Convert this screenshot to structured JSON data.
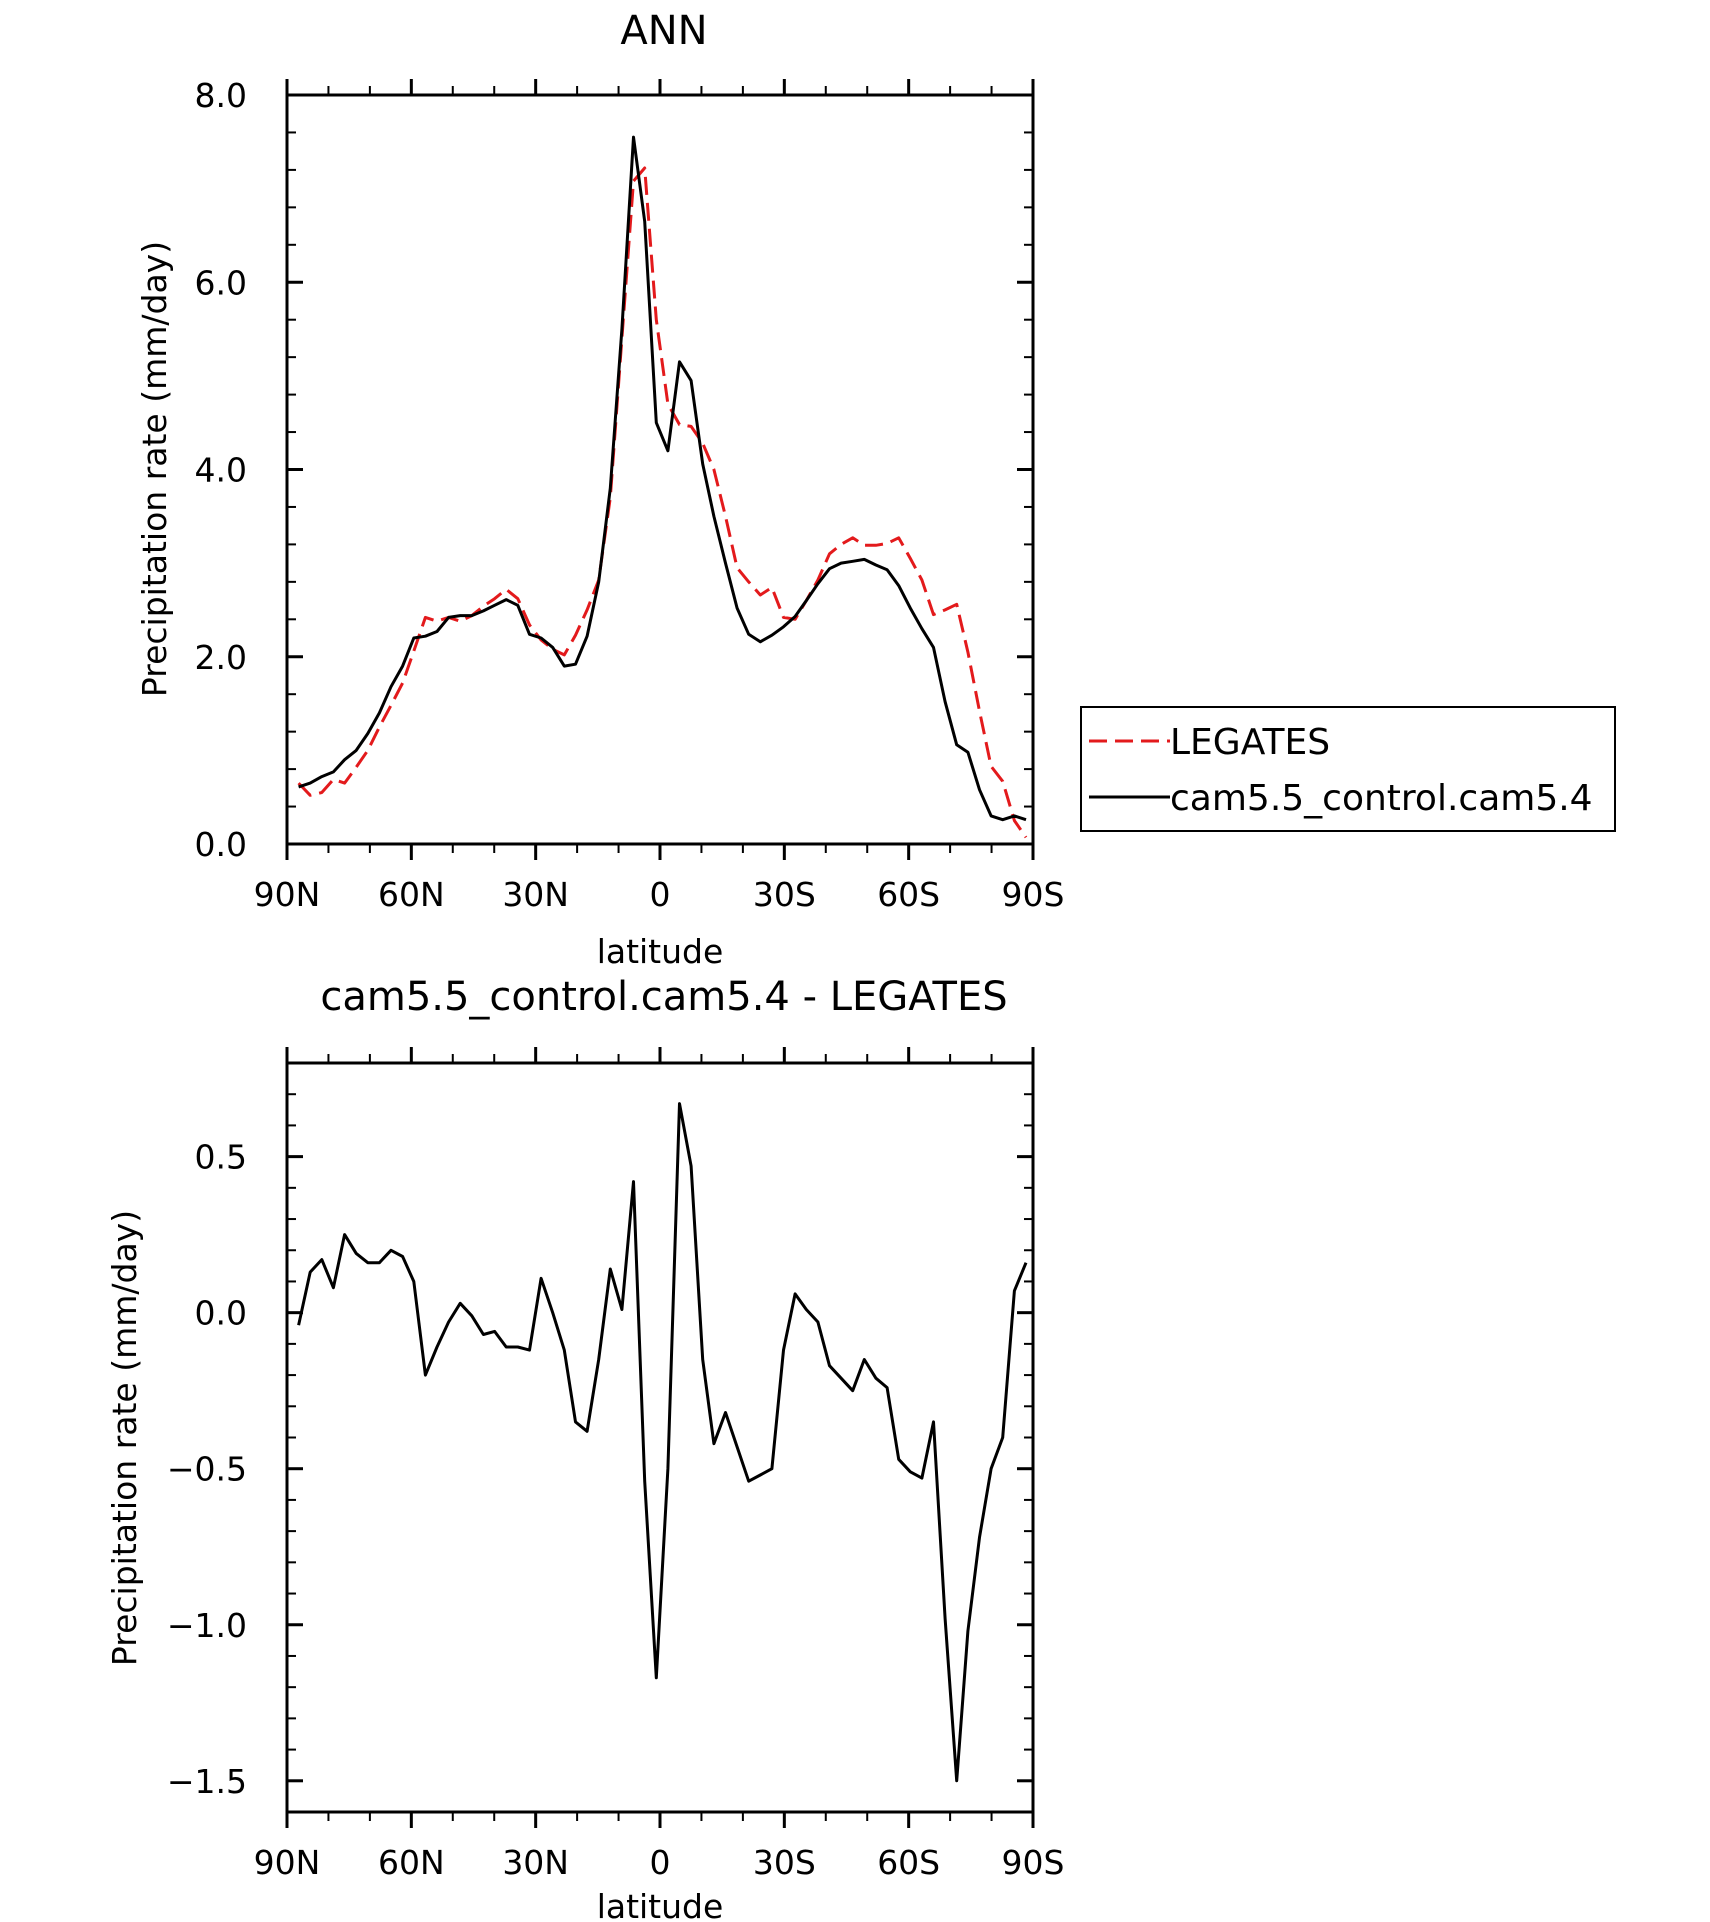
{
  "chart_data": [
    {
      "type": "line",
      "title": "ANN",
      "xlabel": "latitude",
      "ylabel": "Precipitation rate (mm/day)",
      "xlim": [
        90,
        -90
      ],
      "ylim": [
        0,
        8
      ],
      "xticks": [
        90,
        60,
        30,
        0,
        -30,
        -60,
        -90
      ],
      "xtick_labels": [
        "90N",
        "60N",
        "30N",
        "0",
        "30S",
        "60S",
        "90S"
      ],
      "yticks": [
        0,
        2,
        4,
        6,
        8
      ],
      "ytick_labels": [
        "0.0",
        "2.0",
        "4.0",
        "6.0",
        "8.0"
      ],
      "legend": {
        "placement": "right-outside"
      },
      "series": [
        {
          "name": "LEGATES",
          "color": "#e31a1c",
          "dash": "dashed",
          "x": [
            87.2,
            84.4,
            81.6,
            78.8,
            76.1,
            73.3,
            70.5,
            67.7,
            64.9,
            62.1,
            59.4,
            56.6,
            53.8,
            51.0,
            48.2,
            45.4,
            42.6,
            39.9,
            37.1,
            34.3,
            31.5,
            28.7,
            25.9,
            23.1,
            20.4,
            17.6,
            14.8,
            12.0,
            9.2,
            6.4,
            3.7,
            0.9,
            -1.9,
            -4.7,
            -7.5,
            -10.3,
            -13.0,
            -15.8,
            -18.6,
            -21.4,
            -24.2,
            -27.0,
            -29.8,
            -32.6,
            -35.3,
            -38.1,
            -40.9,
            -43.7,
            -46.5,
            -49.3,
            -52.1,
            -54.8,
            -57.6,
            -60.4,
            -63.2,
            -66.0,
            -68.8,
            -71.6,
            -74.3,
            -77.1,
            -79.9,
            -82.7,
            -85.5,
            -88.3
          ],
          "values": [
            0.65,
            0.52,
            0.55,
            0.69,
            0.65,
            0.82,
            1.0,
            1.25,
            1.48,
            1.72,
            2.06,
            2.42,
            2.38,
            2.42,
            2.38,
            2.44,
            2.54,
            2.62,
            2.72,
            2.62,
            2.34,
            2.18,
            2.08,
            2.02,
            2.23,
            2.5,
            2.82,
            3.7,
            5.4,
            7.08,
            7.22,
            5.6,
            4.7,
            4.48,
            4.46,
            4.28,
            4.0,
            3.5,
            2.95,
            2.8,
            2.66,
            2.74,
            2.42,
            2.4,
            2.6,
            2.82,
            3.1,
            3.2,
            3.27,
            3.19,
            3.19,
            3.21,
            3.27,
            3.05,
            2.82,
            2.45,
            2.5,
            2.56,
            2.05,
            1.42,
            0.83,
            0.67,
            0.25,
            0.07
          ]
        },
        {
          "name": "cam5.5_control.cam5.4",
          "color": "#000000",
          "dash": "solid",
          "x": [
            87.2,
            84.4,
            81.6,
            78.8,
            76.1,
            73.3,
            70.5,
            67.7,
            64.9,
            62.1,
            59.4,
            56.6,
            53.8,
            51.0,
            48.2,
            45.4,
            42.6,
            39.9,
            37.1,
            34.3,
            31.5,
            28.7,
            25.9,
            23.1,
            20.4,
            17.6,
            14.8,
            12.0,
            9.2,
            6.4,
            3.7,
            0.9,
            -1.9,
            -4.7,
            -7.5,
            -10.3,
            -13.0,
            -15.8,
            -18.6,
            -21.4,
            -24.2,
            -27.0,
            -29.8,
            -32.6,
            -35.3,
            -38.1,
            -40.9,
            -43.7,
            -46.5,
            -49.3,
            -52.1,
            -54.8,
            -57.6,
            -60.4,
            -63.2,
            -66.0,
            -68.8,
            -71.6,
            -74.3,
            -77.1,
            -79.9,
            -82.7,
            -85.5,
            -88.3
          ],
          "values": [
            0.61,
            0.65,
            0.72,
            0.77,
            0.9,
            1.0,
            1.18,
            1.4,
            1.68,
            1.9,
            2.2,
            2.22,
            2.27,
            2.42,
            2.44,
            2.44,
            2.49,
            2.55,
            2.61,
            2.55,
            2.24,
            2.2,
            2.1,
            1.9,
            1.92,
            2.22,
            2.8,
            3.8,
            5.5,
            7.55,
            6.65,
            4.5,
            4.2,
            5.15,
            4.95,
            4.06,
            3.5,
            3.0,
            2.52,
            2.24,
            2.16,
            2.23,
            2.32,
            2.43,
            2.6,
            2.78,
            2.94,
            3.0,
            3.02,
            3.04,
            2.98,
            2.93,
            2.76,
            2.52,
            2.3,
            2.1,
            1.52,
            1.06,
            0.98,
            0.58,
            0.3,
            0.26,
            0.3,
            0.26
          ]
        }
      ]
    },
    {
      "type": "line",
      "title": "cam5.5_control.cam5.4 - LEGATES",
      "xlabel": "latitude",
      "ylabel": "Precipitation rate (mm/day)",
      "xlim": [
        90,
        -90
      ],
      "ylim": [
        -1.6,
        0.8
      ],
      "xticks": [
        90,
        60,
        30,
        0,
        -30,
        -60,
        -90
      ],
      "xtick_labels": [
        "90N",
        "60N",
        "30N",
        "0",
        "30S",
        "60S",
        "90S"
      ],
      "yticks": [
        -1.5,
        -1.0,
        -0.5,
        0.0,
        0.5
      ],
      "ytick_labels": [
        "−1.5",
        "−1.0",
        "−0.5",
        "0.0",
        "0.5"
      ],
      "series": [
        {
          "color": "#000000",
          "dash": "solid",
          "x": [
            87.2,
            84.4,
            81.6,
            78.8,
            76.1,
            73.3,
            70.5,
            67.7,
            64.9,
            62.1,
            59.4,
            56.6,
            53.8,
            51.0,
            48.2,
            45.4,
            42.6,
            39.9,
            37.1,
            34.3,
            31.5,
            28.7,
            25.9,
            23.1,
            20.4,
            17.6,
            14.8,
            12.0,
            9.2,
            6.4,
            3.7,
            0.9,
            -1.9,
            -4.7,
            -7.5,
            -10.3,
            -13.0,
            -15.8,
            -18.6,
            -21.4,
            -24.2,
            -27.0,
            -29.8,
            -32.6,
            -35.3,
            -38.1,
            -40.9,
            -43.7,
            -46.5,
            -49.3,
            -52.1,
            -54.8,
            -57.6,
            -60.4,
            -63.2,
            -66.0,
            -68.8,
            -71.6,
            -74.3,
            -77.1,
            -79.9,
            -82.7,
            -85.5,
            -88.3
          ],
          "values": [
            -0.04,
            0.13,
            0.17,
            0.08,
            0.25,
            0.19,
            0.16,
            0.16,
            0.2,
            0.18,
            0.1,
            -0.2,
            -0.11,
            -0.03,
            0.03,
            -0.01,
            -0.07,
            -0.06,
            -0.11,
            -0.11,
            -0.12,
            0.11,
            0.0,
            -0.12,
            -0.35,
            -0.38,
            -0.15,
            0.14,
            0.01,
            0.42,
            -0.54,
            -1.17,
            -0.5,
            0.67,
            0.47,
            -0.15,
            -0.42,
            -0.32,
            -0.43,
            -0.54,
            -0.52,
            -0.5,
            -0.12,
            0.06,
            0.01,
            -0.03,
            -0.17,
            -0.21,
            -0.25,
            -0.15,
            -0.21,
            -0.24,
            -0.47,
            -0.51,
            -0.53,
            -0.35,
            -0.98,
            -1.5,
            -1.02,
            -0.72,
            -0.5,
            -0.4,
            0.07,
            0.16
          ]
        }
      ]
    }
  ]
}
